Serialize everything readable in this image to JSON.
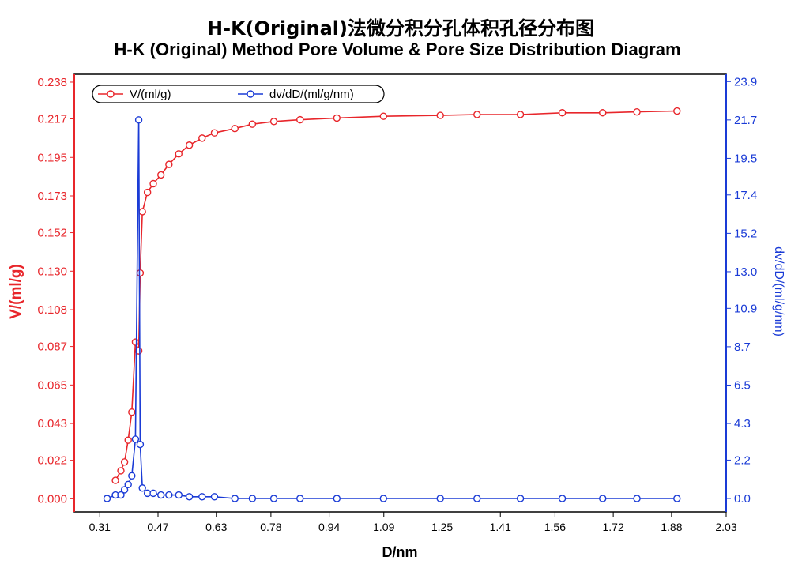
{
  "title_cn": "H-K(Original)法微分积分孔体积孔径分布图",
  "title_en": "H-K (Original) Method Pore Volume & Pore Size Distribution Diagram",
  "colors": {
    "left_series": "#e8262b",
    "right_series": "#1a3bd6",
    "axis": "#000000"
  },
  "chart_data": {
    "type": "line",
    "xlabel": "D/nm",
    "ylabel_left": "V/(ml/g)",
    "ylabel_right": "dv/dD/(ml/g/nm)",
    "xlim": [
      0.24,
      2.03
    ],
    "ylim_left": [
      -0.0075,
      0.2425
    ],
    "ylim_right": [
      -0.77,
      24.32
    ],
    "x_ticks": [
      "0.31",
      "0.47",
      "0.63",
      "0.78",
      "0.94",
      "1.09",
      "1.25",
      "1.41",
      "1.56",
      "1.72",
      "1.88",
      "2.03"
    ],
    "y_left_ticks": [
      "0.000",
      "0.022",
      "0.043",
      "0.065",
      "0.087",
      "0.108",
      "0.130",
      "0.152",
      "0.173",
      "0.195",
      "0.217",
      "0.238"
    ],
    "y_right_ticks": [
      "0.0",
      "2.2",
      "4.3",
      "6.5",
      "8.7",
      "10.9",
      "13.0",
      "15.2",
      "17.4",
      "19.5",
      "21.7",
      "23.9"
    ],
    "legend_position": "top-left",
    "grid": false,
    "series": [
      {
        "name": "V/(ml/g)",
        "axis": "left",
        "x": [
          0.353,
          0.368,
          0.378,
          0.388,
          0.398,
          0.408,
          0.417,
          0.421,
          0.427,
          0.441,
          0.457,
          0.478,
          0.5,
          0.527,
          0.556,
          0.591,
          0.625,
          0.681,
          0.729,
          0.788,
          0.86,
          0.961,
          1.089,
          1.245,
          1.346,
          1.465,
          1.58,
          1.691,
          1.785,
          1.895
        ],
        "y": [
          0.0105,
          0.016,
          0.021,
          0.0335,
          0.0495,
          0.0895,
          0.0845,
          0.129,
          0.164,
          0.175,
          0.18,
          0.185,
          0.191,
          0.197,
          0.202,
          0.206,
          0.209,
          0.2115,
          0.214,
          0.2155,
          0.2165,
          0.2175,
          0.2185,
          0.219,
          0.2195,
          0.2195,
          0.2205,
          0.2205,
          0.221,
          0.2215
        ]
      },
      {
        "name": "dv/dD/(ml/g/nm)",
        "axis": "right",
        "x": [
          0.33,
          0.353,
          0.368,
          0.378,
          0.388,
          0.398,
          0.408,
          0.417,
          0.421,
          0.427,
          0.441,
          0.457,
          0.478,
          0.5,
          0.527,
          0.556,
          0.591,
          0.625,
          0.681,
          0.729,
          0.788,
          0.86,
          0.961,
          1.089,
          1.245,
          1.346,
          1.465,
          1.58,
          1.691,
          1.785,
          1.895
        ],
        "y": [
          0.0,
          0.2,
          0.2,
          0.5,
          0.8,
          1.3,
          3.4,
          21.7,
          3.1,
          0.6,
          0.3,
          0.3,
          0.2,
          0.2,
          0.2,
          0.1,
          0.1,
          0.1,
          0.0,
          0.0,
          0.0,
          0.0,
          0.0,
          0.0,
          0.0,
          0.0,
          0.0,
          0.0,
          0.0,
          0.0,
          0.0
        ]
      }
    ]
  }
}
